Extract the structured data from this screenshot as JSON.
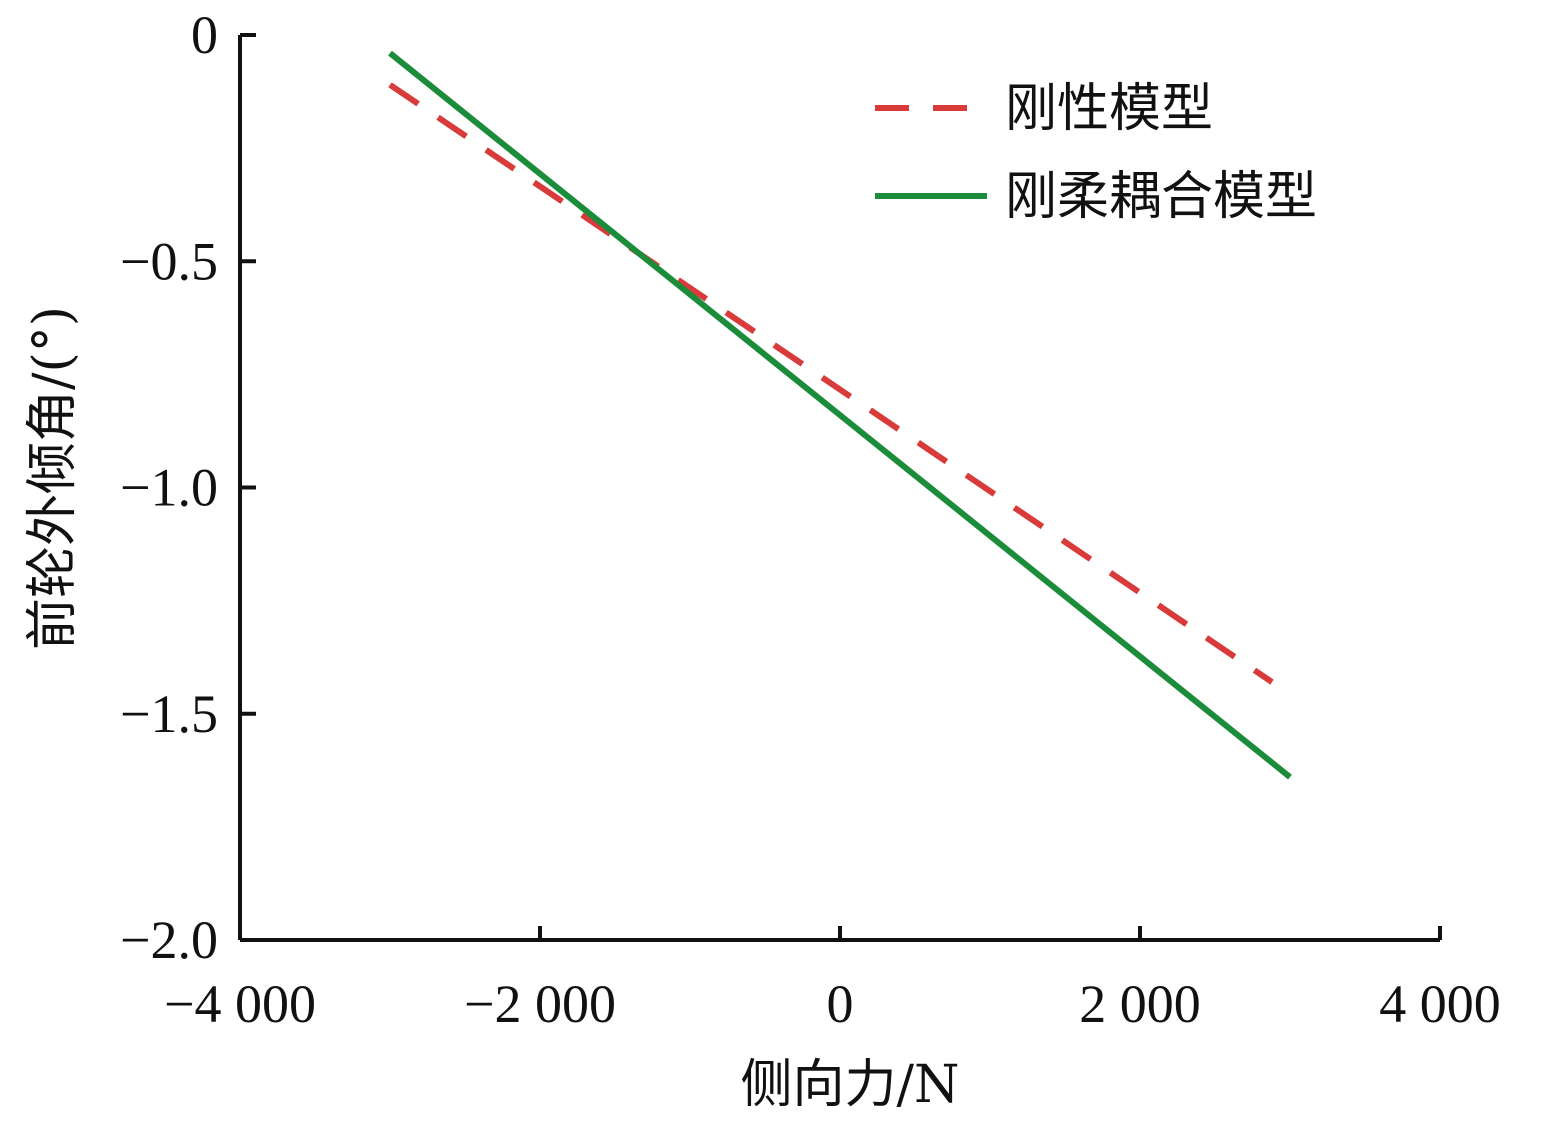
{
  "chart_data": {
    "type": "line",
    "xlabel": "侧向力/N",
    "ylabel": "前轮外倾角/(°)",
    "xlim": [
      -4000,
      4000
    ],
    "ylim": [
      -2.0,
      0
    ],
    "xticks": [
      -4000,
      -2000,
      0,
      2000,
      4000
    ],
    "xtick_labels": [
      "−4 000",
      "−2 000",
      "0",
      "2 000",
      "4 000"
    ],
    "yticks": [
      0,
      -0.5,
      -1.0,
      -1.5,
      -2.0
    ],
    "ytick_labels": [
      "0",
      "−0.5",
      "−1.0",
      "−1.5",
      "−2.0"
    ],
    "grid": false,
    "legend_position": "top-right",
    "series": [
      {
        "name": "刚性模型",
        "style": "dashed",
        "color": "#d93a3a",
        "x": [
          -3000,
          2880
        ],
        "y": [
          -0.11,
          -1.43
        ]
      },
      {
        "name": "刚柔耦合模型",
        "style": "solid",
        "color": "#1a8c3a",
        "x": [
          -3000,
          3000
        ],
        "y": [
          -0.04,
          -1.64
        ]
      }
    ]
  }
}
